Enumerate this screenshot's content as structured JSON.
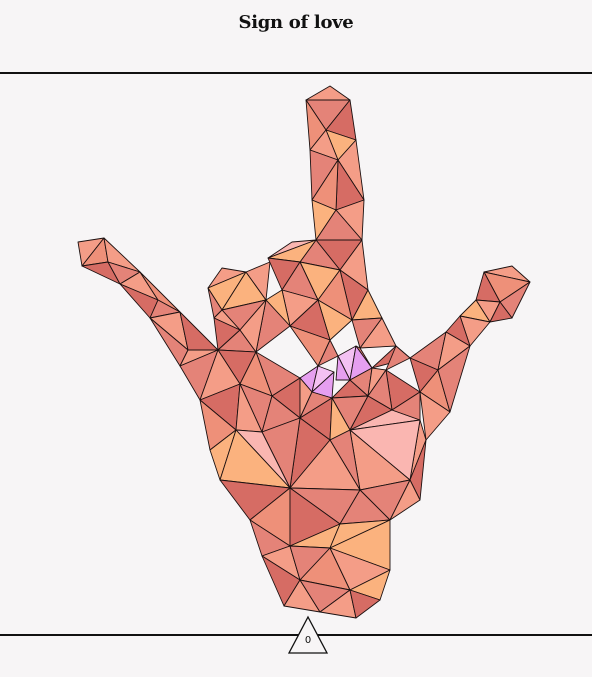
{
  "title": "Sign of love",
  "counter": {
    "value": "0"
  },
  "palette": {
    "A": "#e48378",
    "B": "#d66c64",
    "C": "#f49d87",
    "D": "#fbb27e",
    "E": "#fab6b1",
    "F": "#e69ff0",
    "G": "#f4c1f3",
    "H": "#ee9079"
  },
  "icons": {
    "counter": "triangle-icon"
  }
}
